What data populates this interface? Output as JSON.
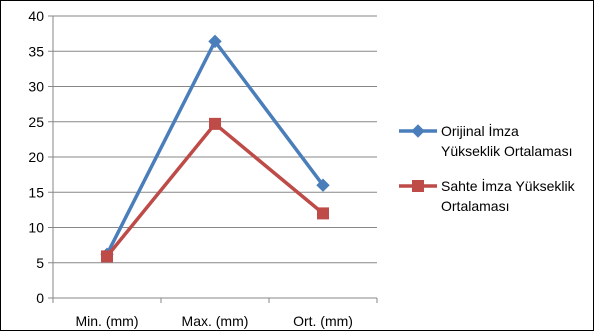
{
  "chart_data": {
    "type": "line",
    "categories": [
      "Min. (mm)",
      "Max. (mm)",
      "Ort. (mm)"
    ],
    "series": [
      {
        "name": "Orijinal İmza Yükseklik Ortalaması",
        "name_lines": [
          "Orijinal İmza",
          "Yükseklik Ortalaması"
        ],
        "values": [
          6.2,
          36.4,
          16.0
        ],
        "color": "#4a7ebb",
        "marker": "diamond"
      },
      {
        "name": "Sahte İmza Yükseklik Ortalaması",
        "name_lines": [
          "Sahte İmza Yükseklik",
          "Ortalaması"
        ],
        "values": [
          5.9,
          24.7,
          12.0
        ],
        "color": "#be4b48",
        "marker": "square"
      }
    ],
    "ylim": [
      0,
      40
    ],
    "yticks": [
      "0",
      "5",
      "10",
      "15",
      "20",
      "25",
      "30",
      "35",
      "40"
    ],
    "grid": true,
    "legend": "right",
    "title": "",
    "xlabel": "",
    "ylabel": ""
  }
}
